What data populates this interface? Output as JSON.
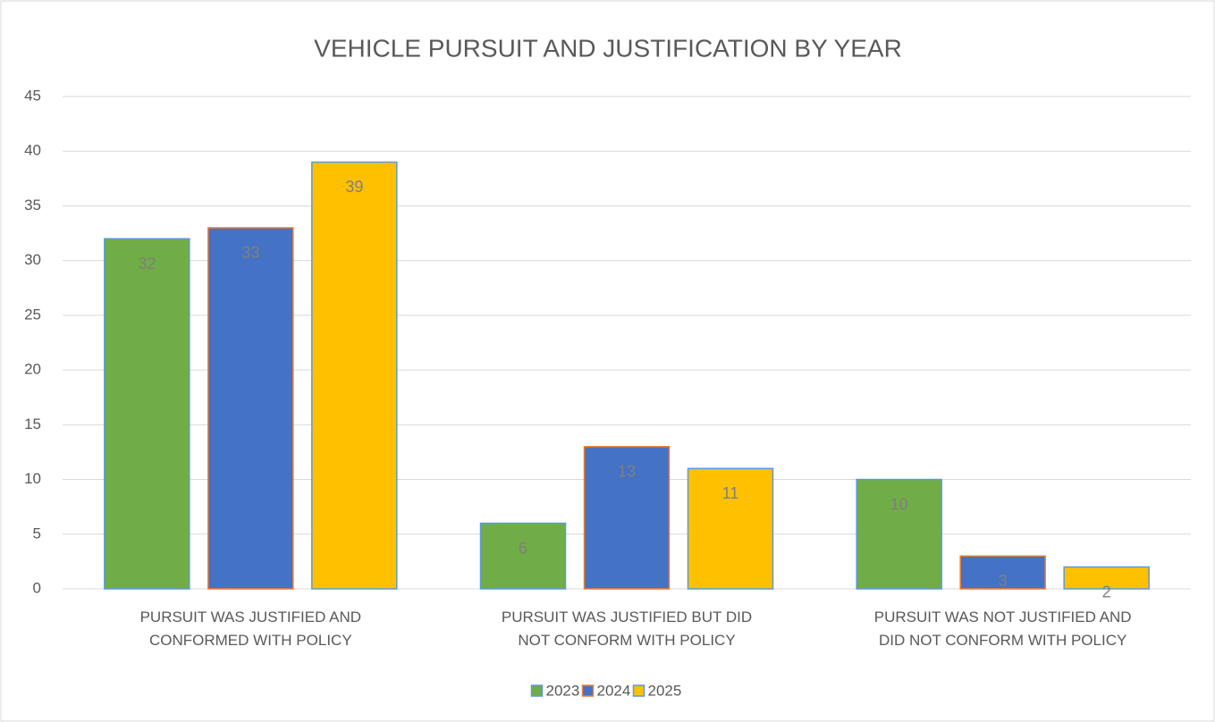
{
  "chart_data": {
    "type": "bar",
    "title": "VEHICLE PURSUIT AND JUSTIFICATION BY YEAR",
    "categories": [
      "PURSUIT WAS JUSTIFIED AND CONFORMED WITH POLICY",
      "PURSUIT WAS JUSTIFIED BUT DID NOT CONFORM WITH POLICY",
      "PURSUIT WAS NOT JUSTIFIED AND DID NOT CONFORM WITH POLICY"
    ],
    "series": [
      {
        "name": "2023",
        "color": "#70ad47",
        "values": [
          32,
          6,
          10
        ]
      },
      {
        "name": "2024",
        "color": "#4472c4",
        "values": [
          33,
          13,
          3
        ]
      },
      {
        "name": "2025",
        "color": "#ffc000",
        "values": [
          39,
          11,
          2
        ]
      }
    ],
    "ylim": [
      0,
      45
    ],
    "yticks": [
      0,
      5,
      10,
      15,
      20,
      25,
      30,
      35,
      40,
      45
    ],
    "grid": true,
    "legend": "bottom"
  }
}
